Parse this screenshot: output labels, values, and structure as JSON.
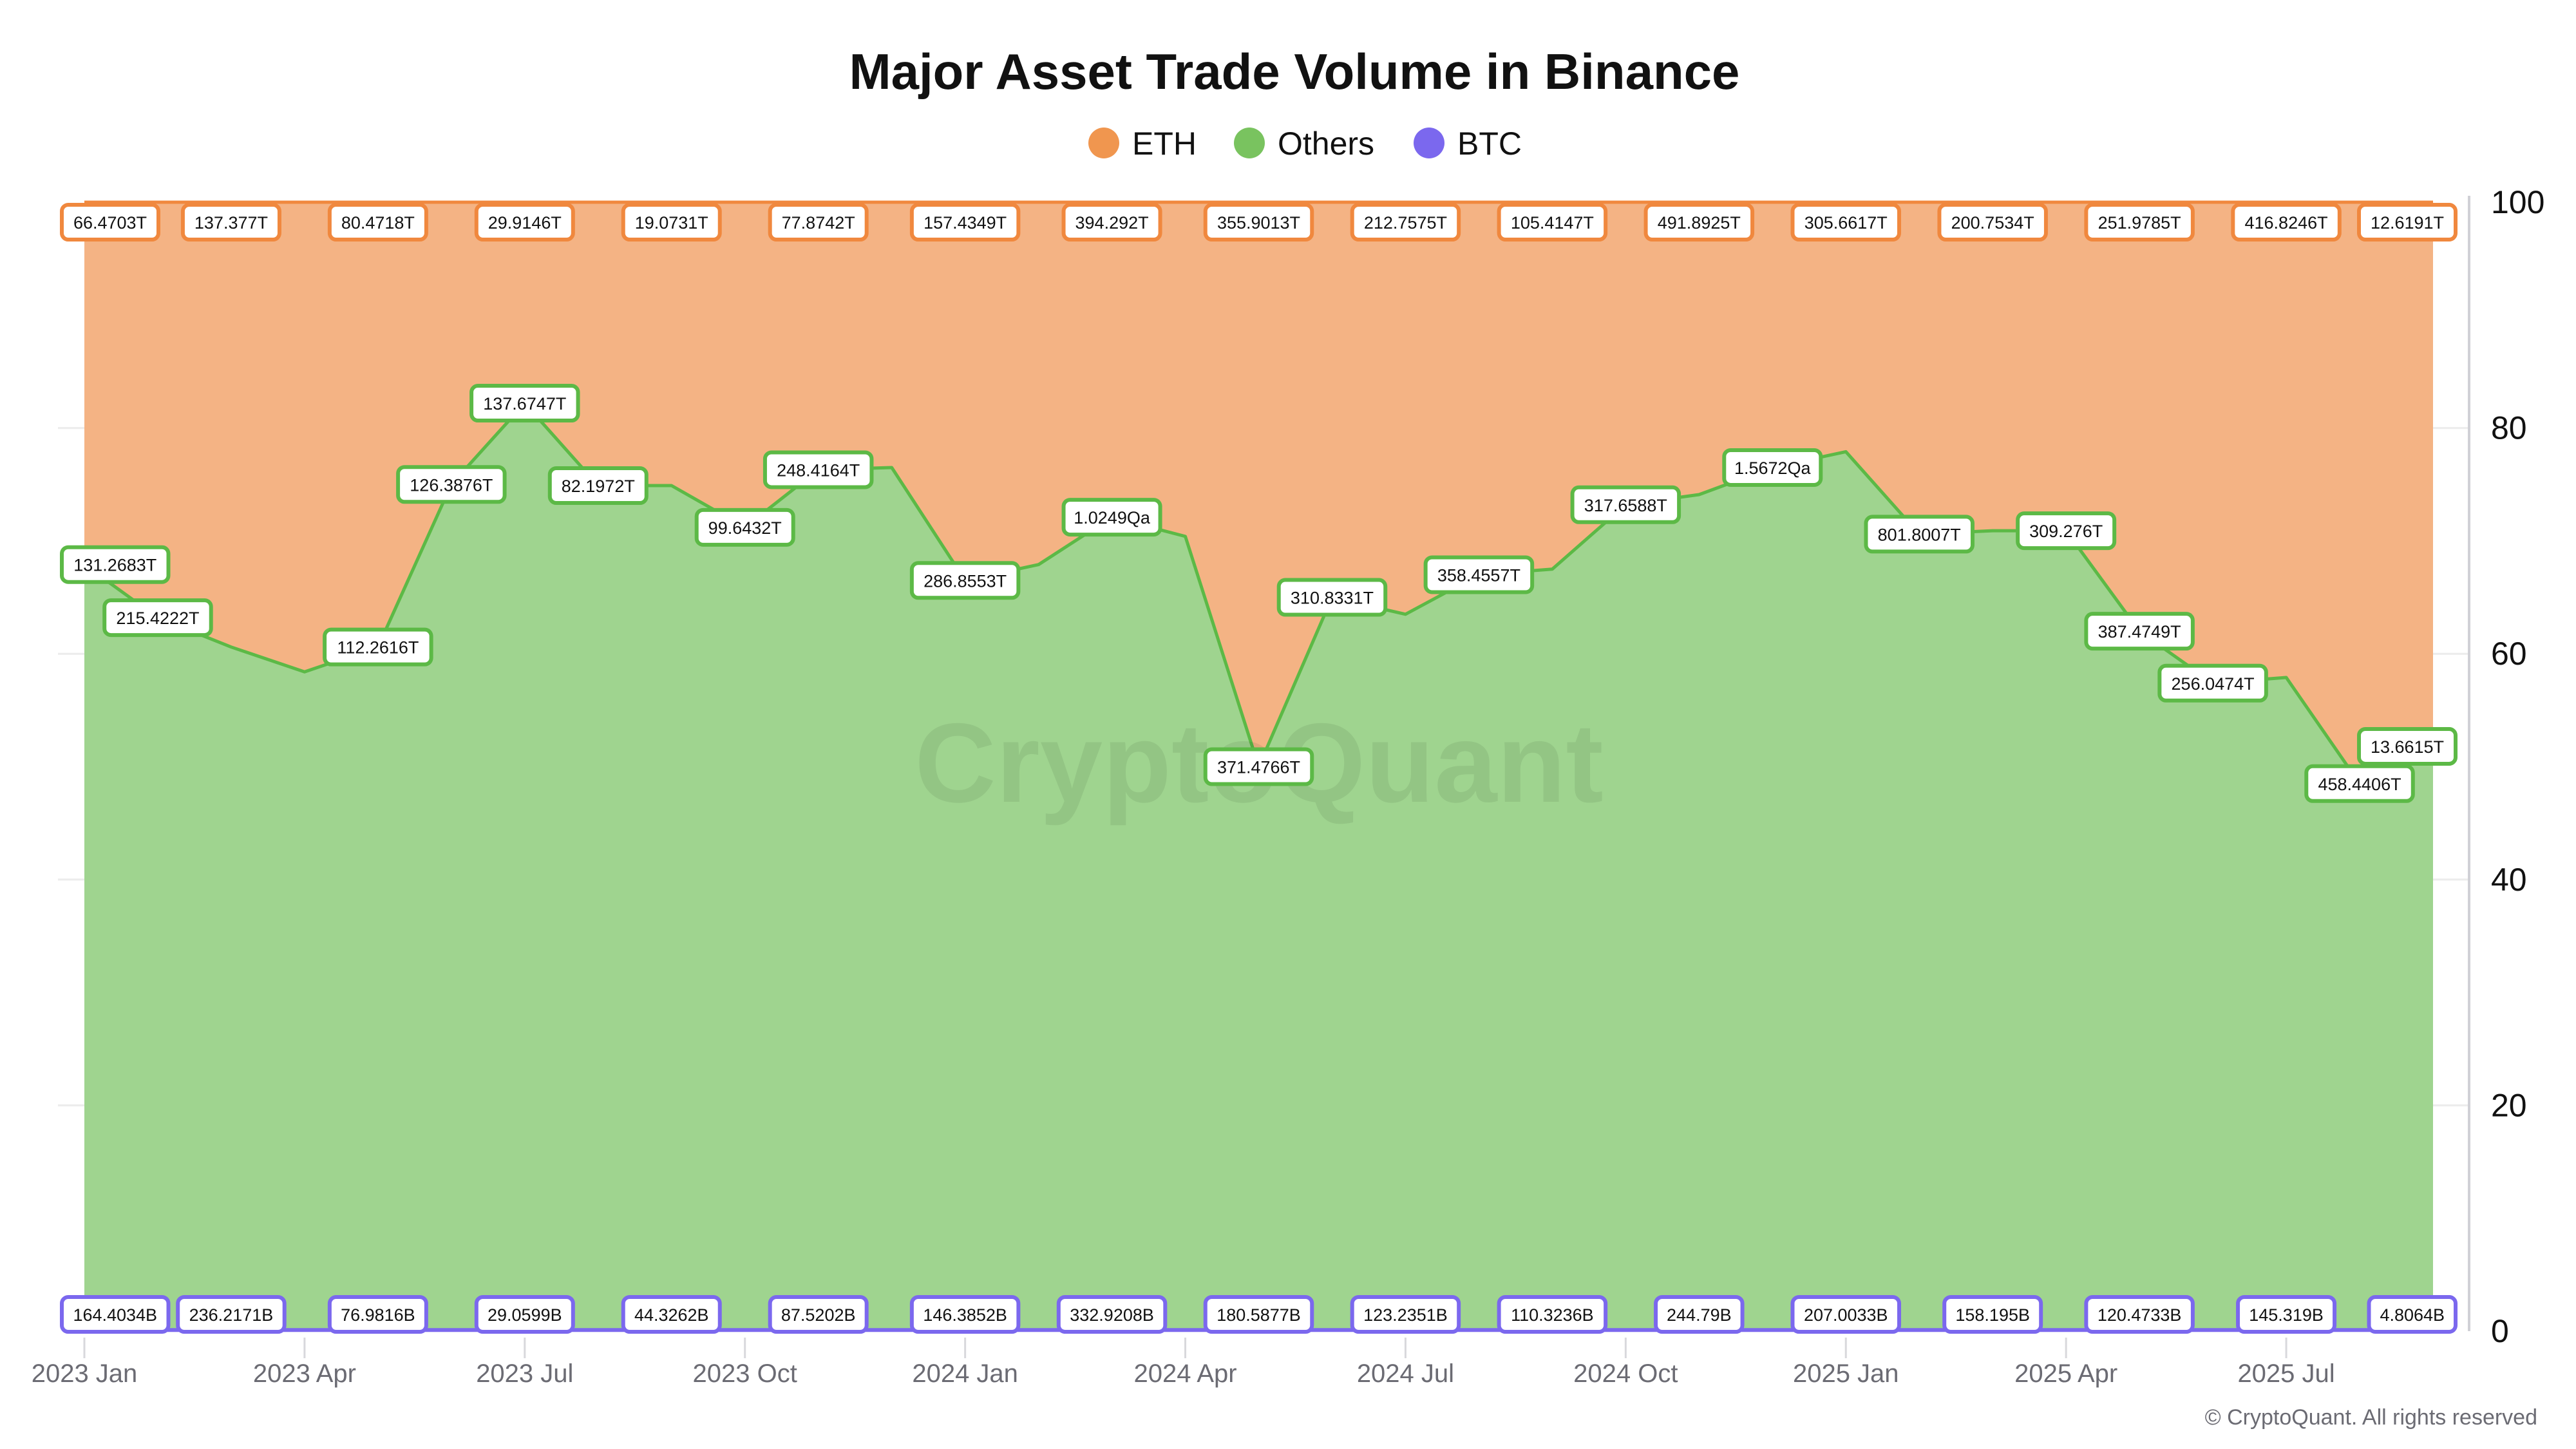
{
  "chart_data": {
    "type": "area",
    "stacking": "percent",
    "title": "Major Asset Trade Volume in Binance",
    "legend": {
      "placement": "top-center",
      "entries": [
        "ETH",
        "Others",
        "BTC"
      ]
    },
    "x": [
      "2023-01",
      "2023-02",
      "2023-03",
      "2023-04",
      "2023-05",
      "2023-06",
      "2023-07",
      "2023-08",
      "2023-09",
      "2023-10",
      "2023-11",
      "2023-12",
      "2024-01",
      "2024-02",
      "2024-03",
      "2024-04",
      "2024-05",
      "2024-06",
      "2024-07",
      "2024-08",
      "2024-09",
      "2024-10",
      "2024-11",
      "2024-12",
      "2025-01",
      "2025-02",
      "2025-03",
      "2025-04",
      "2025-05",
      "2025-06",
      "2025-07",
      "2025-08",
      "2025-09"
    ],
    "x_tick_labels": [
      "2023 Jan",
      "2023 Apr",
      "2023 Jul",
      "2023 Oct",
      "2024 Jan",
      "2024 Apr",
      "2024 Jul",
      "2024 Oct",
      "2025 Jan",
      "2025 Apr",
      "2025 Jul"
    ],
    "y_tick_labels": [
      "0",
      "20",
      "40",
      "60",
      "80",
      "100"
    ],
    "ylim": [
      0,
      100
    ],
    "y_axis_side": "right",
    "grid": true,
    "series": [
      {
        "name": "BTC",
        "color": "#7b68ee",
        "values": [
          0.1,
          0.1,
          0.1,
          0.1,
          0.1,
          0.1,
          0.1,
          0.1,
          0.1,
          0.1,
          0.1,
          0.1,
          0.1,
          0.1,
          0.1,
          0.1,
          0.1,
          0.1,
          0.1,
          0.1,
          0.1,
          0.1,
          0.1,
          0.1,
          0.1,
          0.1,
          0.1,
          0.1,
          0.1,
          0.1,
          0.1,
          0.1,
          0.1
        ]
      },
      {
        "name": "Others",
        "color": "#5cb946",
        "fill": "#9fd48f",
        "values": [
          67.8,
          63.1,
          60.5,
          58.3,
          60.5,
          74.9,
          82.1,
          74.8,
          74.8,
          71.1,
          76.2,
          76.4,
          66.4,
          67.8,
          72.0,
          70.3,
          49.9,
          64.9,
          63.4,
          66.9,
          67.4,
          73.1,
          74.0,
          76.4,
          77.8,
          70.5,
          70.8,
          70.8,
          61.9,
          57.3,
          57.8,
          48.4,
          51.7
        ]
      },
      {
        "name": "ETH",
        "color": "#f0883e",
        "fill": "#f4b384",
        "values": [
          32.1,
          36.8,
          39.4,
          41.6,
          39.4,
          25.0,
          17.8,
          25.1,
          25.1,
          28.8,
          23.7,
          23.5,
          33.5,
          32.1,
          27.9,
          29.6,
          50.0,
          35.0,
          36.5,
          33.0,
          32.5,
          26.8,
          25.9,
          23.5,
          22.1,
          29.4,
          29.1,
          29.1,
          38.0,
          42.6,
          42.1,
          51.5,
          48.2
        ]
      }
    ],
    "data_labels": {
      "ETH": [
        {
          "month": "2023-01",
          "text": "66.4703T"
        },
        {
          "month": "2023-03",
          "text": "137.377T"
        },
        {
          "month": "2023-05",
          "text": "80.4718T"
        },
        {
          "month": "2023-07",
          "text": "29.9146T"
        },
        {
          "month": "2023-09",
          "text": "19.0731T"
        },
        {
          "month": "2023-11",
          "text": "77.8742T"
        },
        {
          "month": "2024-01",
          "text": "157.4349T"
        },
        {
          "month": "2024-03",
          "text": "394.292T"
        },
        {
          "month": "2024-05",
          "text": "355.9013T"
        },
        {
          "month": "2024-07",
          "text": "212.7575T"
        },
        {
          "month": "2024-09",
          "text": "105.4147T"
        },
        {
          "month": "2024-11",
          "text": "491.8925T"
        },
        {
          "month": "2025-01",
          "text": "305.6617T"
        },
        {
          "month": "2025-03",
          "text": "200.7534T"
        },
        {
          "month": "2025-05",
          "text": "251.9785T"
        },
        {
          "month": "2025-07",
          "text": "416.8246T"
        },
        {
          "month": "2025-09",
          "text": "12.6191T"
        }
      ],
      "Others": [
        {
          "month": "2023-01",
          "text": "131.2683T"
        },
        {
          "month": "2023-02",
          "text": "215.4222T"
        },
        {
          "month": "2023-05",
          "text": "112.2616T"
        },
        {
          "month": "2023-06",
          "text": "126.3876T"
        },
        {
          "month": "2023-07",
          "text": "137.6747T"
        },
        {
          "month": "2023-08",
          "text": "82.1972T"
        },
        {
          "month": "2023-10",
          "text": "99.6432T"
        },
        {
          "month": "2023-11",
          "text": "248.4164T"
        },
        {
          "month": "2024-01",
          "text": "286.8553T"
        },
        {
          "month": "2024-03",
          "text": "1.0249Qa"
        },
        {
          "month": "2024-05",
          "text": "371.4766T"
        },
        {
          "month": "2024-06",
          "text": "310.8331T"
        },
        {
          "month": "2024-08",
          "text": "358.4557T"
        },
        {
          "month": "2024-10",
          "text": "317.6588T"
        },
        {
          "month": "2024-12",
          "text": "1.5672Qa"
        },
        {
          "month": "2025-02",
          "text": "801.8007T"
        },
        {
          "month": "2025-04",
          "text": "309.276T"
        },
        {
          "month": "2025-05",
          "text": "387.4749T"
        },
        {
          "month": "2025-06",
          "text": "256.0474T"
        },
        {
          "month": "2025-08",
          "text": "458.4406T"
        },
        {
          "month": "2025-09",
          "text": "13.6615T"
        }
      ],
      "BTC": [
        {
          "month": "2023-01",
          "text": "164.4034B"
        },
        {
          "month": "2023-03",
          "text": "236.2171B"
        },
        {
          "month": "2023-05",
          "text": "76.9816B"
        },
        {
          "month": "2023-07",
          "text": "29.0599B"
        },
        {
          "month": "2023-09",
          "text": "44.3262B"
        },
        {
          "month": "2023-11",
          "text": "87.5202B"
        },
        {
          "month": "2024-01",
          "text": "146.3852B"
        },
        {
          "month": "2024-03",
          "text": "332.9208B"
        },
        {
          "month": "2024-05",
          "text": "180.5877B"
        },
        {
          "month": "2024-07",
          "text": "123.2351B"
        },
        {
          "month": "2024-09",
          "text": "110.3236B"
        },
        {
          "month": "2024-11",
          "text": "244.79B"
        },
        {
          "month": "2025-01",
          "text": "207.0033B"
        },
        {
          "month": "2025-03",
          "text": "158.195B"
        },
        {
          "month": "2025-05",
          "text": "120.4733B"
        },
        {
          "month": "2025-07",
          "text": "145.319B"
        },
        {
          "month": "2025-09",
          "text": "4.8064B"
        }
      ]
    }
  },
  "watermark": "CryptoQuant",
  "copyright": "© CryptoQuant. All rights reserved"
}
